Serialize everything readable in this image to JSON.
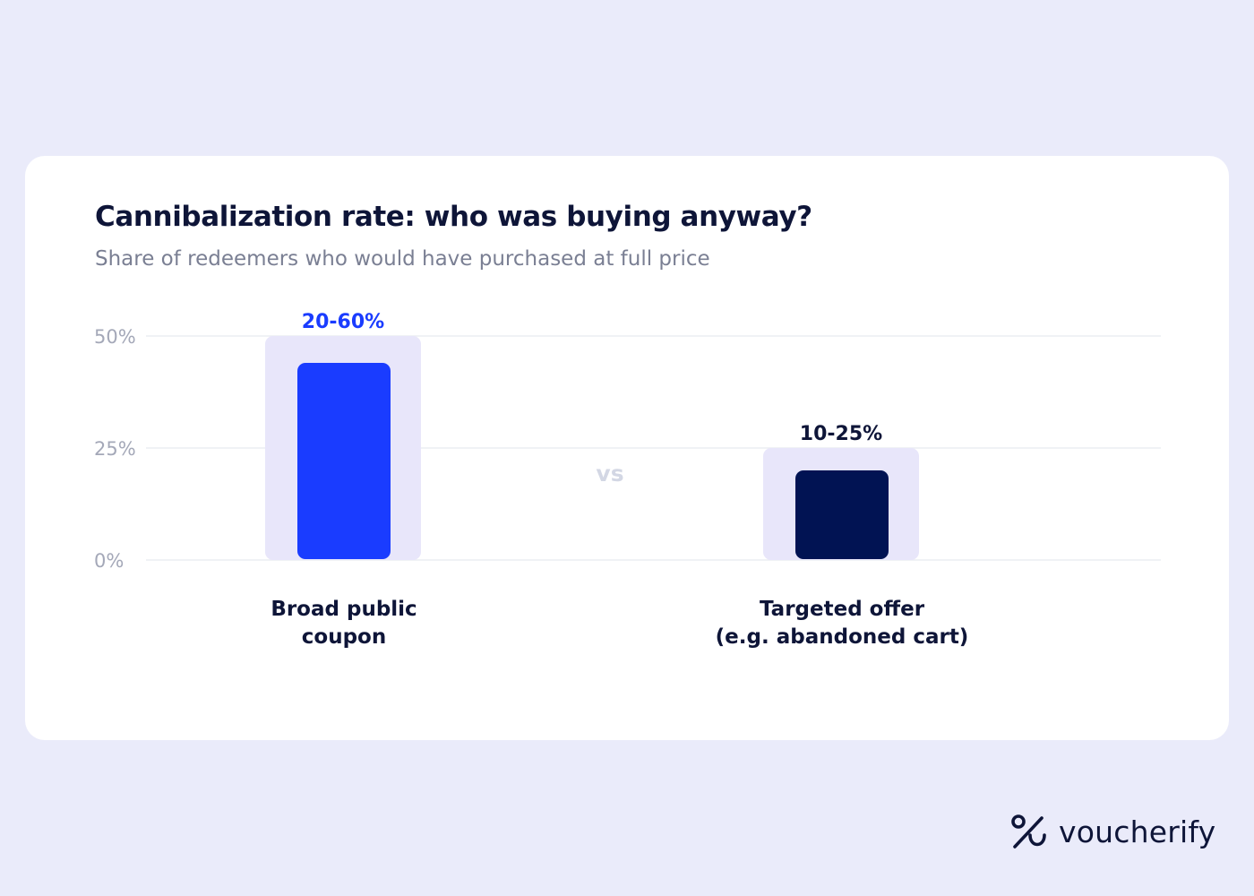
{
  "header": {
    "title": "Cannibalization rate: who was buying anyway?",
    "subtitle": "Share of redeemers who would have purchased at full price"
  },
  "chart_data": {
    "type": "bar",
    "title": "Cannibalization rate: who was buying anyway?",
    "subtitle": "Share of redeemers who would have purchased at full price",
    "categories": [
      "Broad public coupon",
      "Targeted offer (e.g. abandoned cart)"
    ],
    "category_lines": [
      [
        "Broad public",
        "coupon"
      ],
      [
        "Targeted offer",
        "(e.g. abandoned cart)"
      ]
    ],
    "ranges": [
      [
        20,
        60
      ],
      [
        10,
        25
      ]
    ],
    "values": [
      44,
      20
    ],
    "data_labels": [
      "20-60%",
      "10-25%"
    ],
    "yticks": [
      0,
      25,
      50
    ],
    "ytick_labels": [
      "0%",
      "25%",
      "50%"
    ],
    "ylim": [
      0,
      50
    ],
    "separator_label": "vs",
    "grid": true,
    "legend": "none",
    "colors": {
      "bar_primary": "#1A3CFF",
      "bar_secondary": "#011353",
      "range_band": "#E8E6FA",
      "label_primary": "#1A3CFF",
      "label_secondary": "#0E1538",
      "grid": "#ECEDF2",
      "tick": "#A4A8B8",
      "separator": "#D3D7E4",
      "category_text": "#0E1538"
    }
  },
  "brand": {
    "name": "voucherify",
    "icon": "percent-icon",
    "color": "#0E1538"
  }
}
